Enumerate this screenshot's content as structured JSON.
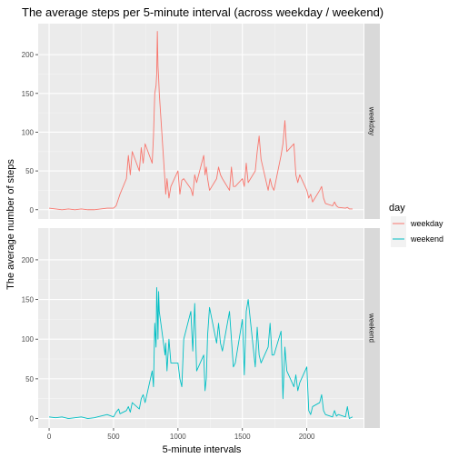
{
  "chart_data": {
    "type": "line",
    "title": "The average steps per 5-minute interval (across weekday / weekend)",
    "xlabel": "5-minute intervals",
    "ylabel": "The average number of steps",
    "xlim": [
      -85,
      2440
    ],
    "ylim": [
      -12,
      240
    ],
    "x_ticks": [
      0,
      500,
      1000,
      1500,
      2000
    ],
    "y_ticks": [
      0,
      50,
      100,
      150,
      200
    ],
    "grid": true,
    "facets": [
      "weekday",
      "weekend"
    ],
    "legend": {
      "title": "day",
      "position": "right",
      "entries": [
        "weekday",
        "weekend"
      ]
    },
    "colors": {
      "weekday": "#F8766D",
      "weekend": "#00BFC4",
      "panel": "#EBEBEB",
      "strip": "#D9D9D9",
      "grid_major": "#FFFFFF",
      "grid_minor": "#F5F5F5"
    },
    "series": [
      {
        "name": "weekday",
        "x": [
          0,
          50,
          100,
          150,
          200,
          250,
          300,
          350,
          400,
          450,
          500,
          520,
          540,
          550,
          600,
          615,
          630,
          645,
          700,
          715,
          730,
          745,
          800,
          810,
          820,
          830,
          835,
          840,
          845,
          850,
          855,
          900,
          905,
          915,
          930,
          945,
          1000,
          1015,
          1030,
          1045,
          1100,
          1115,
          1130,
          1145,
          1200,
          1210,
          1220,
          1230,
          1245,
          1300,
          1315,
          1330,
          1345,
          1400,
          1415,
          1430,
          1445,
          1500,
          1515,
          1530,
          1545,
          1600,
          1615,
          1630,
          1645,
          1700,
          1715,
          1730,
          1745,
          1800,
          1815,
          1830,
          1845,
          1900,
          1915,
          1930,
          1945,
          2000,
          2015,
          2030,
          2045,
          2100,
          2115,
          2130,
          2145,
          2200,
          2215,
          2230,
          2245,
          2300,
          2315,
          2330,
          2355
        ],
        "values": [
          2,
          1,
          0,
          1,
          0,
          1,
          0,
          0,
          1,
          2,
          2,
          5,
          15,
          20,
          40,
          70,
          45,
          75,
          50,
          80,
          60,
          85,
          60,
          95,
          150,
          160,
          175,
          230,
          185,
          170,
          150,
          35,
          20,
          40,
          15,
          30,
          50,
          20,
          38,
          40,
          27,
          18,
          45,
          35,
          70,
          45,
          55,
          40,
          25,
          40,
          55,
          45,
          40,
          25,
          55,
          30,
          30,
          40,
          30,
          60,
          35,
          50,
          75,
          95,
          65,
          25,
          40,
          30,
          25,
          70,
          85,
          115,
          75,
          85,
          45,
          35,
          45,
          25,
          15,
          20,
          10,
          25,
          30,
          15,
          8,
          5,
          10,
          5,
          3,
          2,
          3,
          1,
          1
        ]
      },
      {
        "name": "weekend",
        "x": [
          0,
          50,
          100,
          150,
          200,
          250,
          300,
          350,
          400,
          450,
          500,
          520,
          540,
          550,
          600,
          615,
          630,
          645,
          700,
          715,
          730,
          745,
          800,
          810,
          820,
          830,
          835,
          840,
          845,
          850,
          855,
          900,
          905,
          915,
          930,
          945,
          1000,
          1015,
          1030,
          1045,
          1100,
          1115,
          1130,
          1145,
          1200,
          1210,
          1220,
          1230,
          1245,
          1300,
          1315,
          1330,
          1345,
          1400,
          1415,
          1430,
          1445,
          1500,
          1515,
          1530,
          1545,
          1600,
          1615,
          1630,
          1645,
          1700,
          1715,
          1730,
          1745,
          1800,
          1815,
          1830,
          1845,
          1900,
          1915,
          1930,
          1945,
          2000,
          2015,
          2030,
          2045,
          2100,
          2115,
          2130,
          2145,
          2200,
          2215,
          2230,
          2245,
          2300,
          2315,
          2330,
          2355
        ],
        "values": [
          2,
          1,
          2,
          0,
          1,
          2,
          0,
          1,
          3,
          5,
          2,
          8,
          12,
          6,
          10,
          15,
          8,
          20,
          12,
          25,
          30,
          20,
          60,
          40,
          120,
          90,
          165,
          140,
          100,
          160,
          135,
          80,
          95,
          60,
          100,
          70,
          70,
          50,
          40,
          100,
          135,
          85,
          145,
          60,
          80,
          35,
          50,
          105,
          140,
          95,
          120,
          95,
          85,
          135,
          100,
          65,
          70,
          125,
          55,
          135,
          150,
          65,
          115,
          80,
          70,
          90,
          120,
          80,
          80,
          110,
          25,
          90,
          60,
          40,
          55,
          35,
          45,
          65,
          10,
          5,
          15,
          20,
          30,
          10,
          5,
          2,
          10,
          3,
          5,
          2,
          15,
          0,
          2
        ]
      }
    ]
  }
}
